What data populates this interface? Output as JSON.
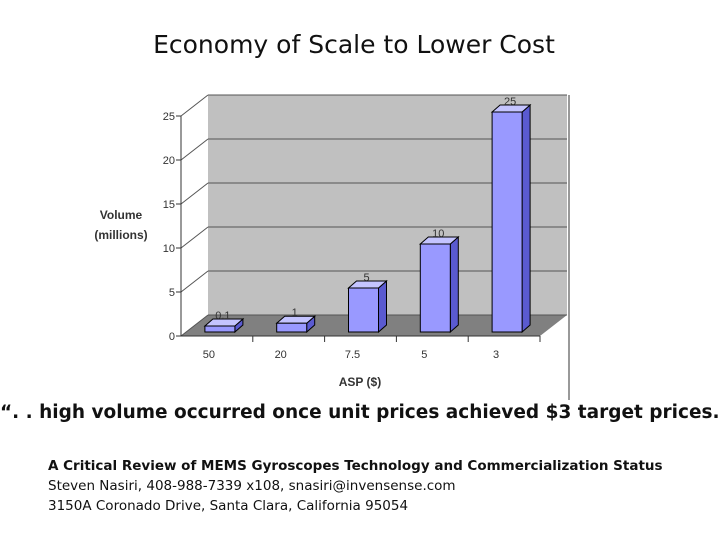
{
  "slide": {
    "title": "Economy of Scale to Lower Cost",
    "quote": "“. . high volume occurred once unit prices achieved $3 target prices.”",
    "citation": {
      "line1": "A Critical Review of MEMS Gyroscopes Technology and Commercialization Status",
      "line2": "Steven Nasiri, 408-988-7339 x108, snasiri@invensense.com",
      "line3": "3150A Coronado Drive, Santa Clara, California 95054"
    }
  },
  "chart_data": {
    "type": "bar",
    "categories": [
      "50",
      "20",
      "7.5",
      "5",
      "3"
    ],
    "values": [
      0.1,
      1,
      5,
      10,
      25
    ],
    "data_labels": [
      "0.1",
      "1",
      "5",
      "10",
      "25"
    ],
    "xlabel": "ASP ($)",
    "ylabel_line1": "Volume",
    "ylabel_line2": "(millions)",
    "ylim": [
      0,
      25
    ],
    "yticks": [
      "0",
      "5",
      "10",
      "15",
      "20",
      "25"
    ],
    "grid": true,
    "style": "3d",
    "colors": {
      "bar_front": "#9999ff",
      "bar_side": "#5a5ad0",
      "bar_top": "#c4c4ff",
      "wall": "#c0c0c0",
      "floor": "#808080",
      "grid": "#555555"
    }
  }
}
